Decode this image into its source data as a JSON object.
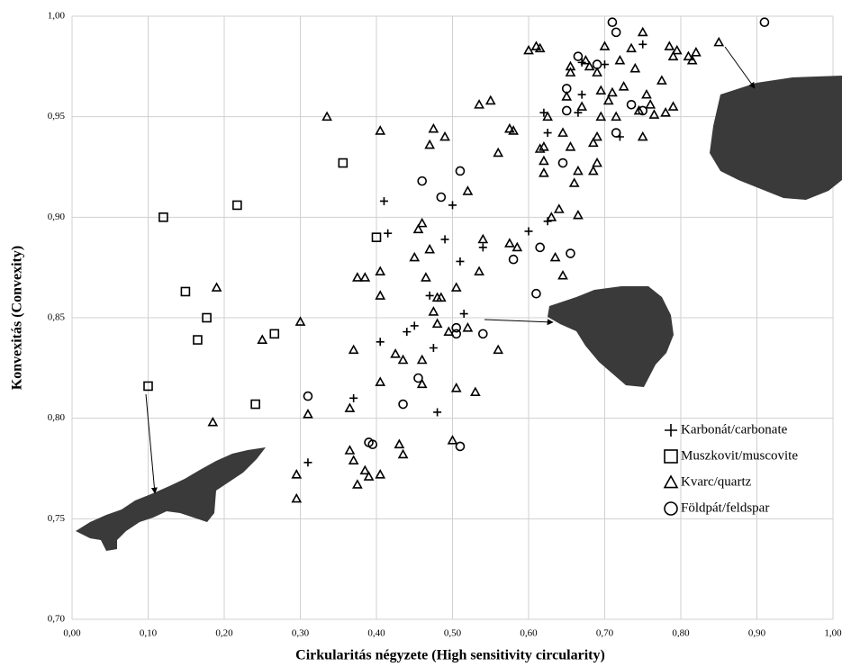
{
  "chart_data": {
    "type": "scatter",
    "x_label": "Cirkularitás négyzete (High sensitivity circularity)",
    "y_label": "Konvexitás (Convexity)",
    "xlim": [
      0,
      1
    ],
    "ylim": [
      0.7,
      1.0
    ],
    "xticks": [
      {
        "value": 0,
        "label": "0,00"
      },
      {
        "value": 0.1,
        "label": "0,10"
      },
      {
        "value": 0.2,
        "label": "0,20"
      },
      {
        "value": 0.3,
        "label": "0,30"
      },
      {
        "value": 0.4,
        "label": "0,40"
      },
      {
        "value": 0.5,
        "label": "0,50"
      },
      {
        "value": 0.6,
        "label": "0,60"
      },
      {
        "value": 0.7,
        "label": "0,70"
      },
      {
        "value": 0.8,
        "label": "0,80"
      },
      {
        "value": 0.9,
        "label": "0,90"
      },
      {
        "value": 1.0,
        "label": "1,00"
      }
    ],
    "yticks": [
      {
        "value": 0.7,
        "label": "0,70"
      },
      {
        "value": 0.75,
        "label": "0,75"
      },
      {
        "value": 0.8,
        "label": "0,80"
      },
      {
        "value": 0.85,
        "label": "0,85"
      },
      {
        "value": 0.9,
        "label": "0,90"
      },
      {
        "value": 0.95,
        "label": "0,95"
      },
      {
        "value": 1.0,
        "label": "1,00"
      }
    ],
    "grid": true,
    "legend": "right",
    "series": [
      {
        "name": "Karbonát/carbonate",
        "marker": "plus",
        "color": "#000000",
        "x": [
          0.41,
          0.415,
          0.49,
          0.5,
          0.51,
          0.47,
          0.475,
          0.44,
          0.45,
          0.405,
          0.37,
          0.31,
          0.48,
          0.515,
          0.54,
          0.6,
          0.625,
          0.62,
          0.625,
          0.67,
          0.665,
          0.7,
          0.75,
          0.72,
          0.67
        ],
        "y": [
          0.908,
          0.892,
          0.889,
          0.906,
          0.878,
          0.861,
          0.835,
          0.843,
          0.846,
          0.838,
          0.81,
          0.778,
          0.803,
          0.852,
          0.885,
          0.893,
          0.898,
          0.952,
          0.942,
          0.961,
          0.952,
          0.976,
          0.986,
          0.94,
          0.977
        ]
      },
      {
        "name": "Muszkovit/muscovite",
        "marker": "square",
        "color": "#000000",
        "x": [
          0.1,
          0.12,
          0.149,
          0.177,
          0.165,
          0.217,
          0.241,
          0.266,
          0.356,
          0.4
        ],
        "y": [
          0.816,
          0.9,
          0.863,
          0.85,
          0.839,
          0.906,
          0.807,
          0.842,
          0.927,
          0.89
        ]
      },
      {
        "name": "Kvarc/quartz",
        "marker": "triangle",
        "color": "#000000",
        "x": [
          0.335,
          0.405,
          0.19,
          0.25,
          0.3,
          0.185,
          0.31,
          0.295,
          0.295,
          0.365,
          0.37,
          0.375,
          0.385,
          0.39,
          0.405,
          0.43,
          0.435,
          0.365,
          0.37,
          0.405,
          0.425,
          0.435,
          0.46,
          0.46,
          0.45,
          0.455,
          0.46,
          0.465,
          0.47,
          0.475,
          0.48,
          0.485,
          0.48,
          0.475,
          0.47,
          0.49,
          0.405,
          0.405,
          0.375,
          0.385,
          0.5,
          0.505,
          0.53,
          0.495,
          0.505,
          0.52,
          0.52,
          0.54,
          0.535,
          0.535,
          0.55,
          0.56,
          0.56,
          0.575,
          0.58,
          0.575,
          0.585,
          0.6,
          0.61,
          0.615,
          0.62,
          0.615,
          0.625,
          0.62,
          0.63,
          0.64,
          0.645,
          0.635,
          0.645,
          0.65,
          0.655,
          0.655,
          0.66,
          0.665,
          0.665,
          0.67,
          0.675,
          0.68,
          0.685,
          0.69,
          0.69,
          0.685,
          0.695,
          0.695,
          0.69,
          0.7,
          0.71,
          0.715,
          0.72,
          0.725,
          0.735,
          0.74,
          0.745,
          0.75,
          0.75,
          0.755,
          0.76,
          0.765,
          0.775,
          0.78,
          0.785,
          0.79,
          0.79,
          0.795,
          0.81,
          0.815,
          0.82,
          0.85,
          0.705,
          0.62,
          0.655
        ],
        "y": [
          0.95,
          0.943,
          0.865,
          0.839,
          0.848,
          0.798,
          0.802,
          0.772,
          0.76,
          0.784,
          0.779,
          0.767,
          0.774,
          0.771,
          0.772,
          0.787,
          0.782,
          0.805,
          0.834,
          0.818,
          0.832,
          0.829,
          0.829,
          0.817,
          0.88,
          0.894,
          0.897,
          0.87,
          0.884,
          0.853,
          0.86,
          0.86,
          0.847,
          0.944,
          0.936,
          0.94,
          0.873,
          0.861,
          0.87,
          0.87,
          0.789,
          0.815,
          0.813,
          0.843,
          0.865,
          0.845,
          0.913,
          0.889,
          0.873,
          0.956,
          0.958,
          0.834,
          0.932,
          0.944,
          0.943,
          0.887,
          0.885,
          0.983,
          0.985,
          0.984,
          0.935,
          0.934,
          0.95,
          0.922,
          0.9,
          0.904,
          0.871,
          0.88,
          0.942,
          0.96,
          0.972,
          0.935,
          0.917,
          0.923,
          0.901,
          0.955,
          0.978,
          0.975,
          0.937,
          0.94,
          0.927,
          0.923,
          0.95,
          0.963,
          0.972,
          0.985,
          0.962,
          0.95,
          0.978,
          0.965,
          0.984,
          0.974,
          0.953,
          0.94,
          0.992,
          0.961,
          0.956,
          0.951,
          0.968,
          0.952,
          0.985,
          0.955,
          0.98,
          0.983,
          0.98,
          0.978,
          0.982,
          0.987,
          0.958,
          0.928,
          0.975
        ]
      },
      {
        "name": "Földpát/feldspar",
        "marker": "circle",
        "color": "#000000",
        "x": [
          0.31,
          0.39,
          0.395,
          0.435,
          0.455,
          0.46,
          0.485,
          0.51,
          0.505,
          0.51,
          0.54,
          0.58,
          0.61,
          0.615,
          0.645,
          0.655,
          0.65,
          0.65,
          0.665,
          0.71,
          0.715,
          0.735,
          0.75,
          0.715,
          0.69,
          0.91,
          0.505
        ],
        "y": [
          0.811,
          0.788,
          0.787,
          0.807,
          0.82,
          0.918,
          0.91,
          0.923,
          0.842,
          0.786,
          0.842,
          0.879,
          0.862,
          0.885,
          0.927,
          0.882,
          0.953,
          0.964,
          0.98,
          0.997,
          0.992,
          0.956,
          0.953,
          0.942,
          0.976,
          0.997,
          0.845
        ]
      }
    ]
  }
}
